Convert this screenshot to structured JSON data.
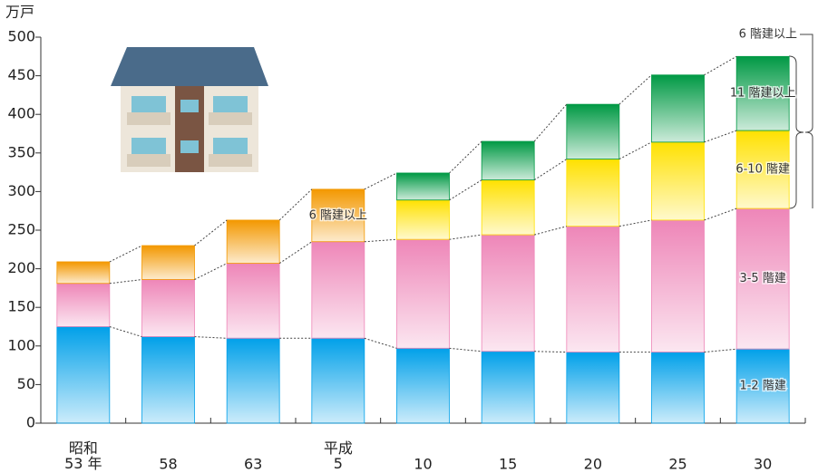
{
  "chart_data": {
    "type": "stacked_bar",
    "y_label": "万戸",
    "annotation": "6 階建以上",
    "categories": [
      "昭和\n53 年",
      "58",
      "63",
      "平成\n5",
      "10",
      "15",
      "20",
      "25",
      "30"
    ],
    "series": [
      {
        "name": "1-2 階建",
        "color": "#00a0e9",
        "values": [
          125,
          112,
          110,
          110,
          97,
          93,
          92,
          92,
          96
        ]
      },
      {
        "name": "3-5 階建",
        "color": "#ee86b8",
        "values": [
          56,
          74,
          97,
          125,
          141,
          151,
          163,
          171,
          182
        ]
      },
      {
        "name": "6 階建以上",
        "color": "#f39800",
        "values": [
          28,
          44,
          56,
          68,
          null,
          null,
          null,
          null,
          null
        ]
      },
      {
        "name": "6-10 階建",
        "color": "#ffe100",
        "values": [
          null,
          null,
          null,
          null,
          51,
          71,
          87,
          101,
          101
        ]
      },
      {
        "name": "11 階建以上",
        "color": "#009944",
        "values": [
          null,
          null,
          null,
          null,
          35,
          50,
          71,
          87,
          96
        ]
      }
    ],
    "ylim": [
      0,
      500
    ],
    "yticks": [
      0,
      50,
      100,
      150,
      200,
      250,
      300,
      350,
      400,
      450,
      500
    ]
  }
}
